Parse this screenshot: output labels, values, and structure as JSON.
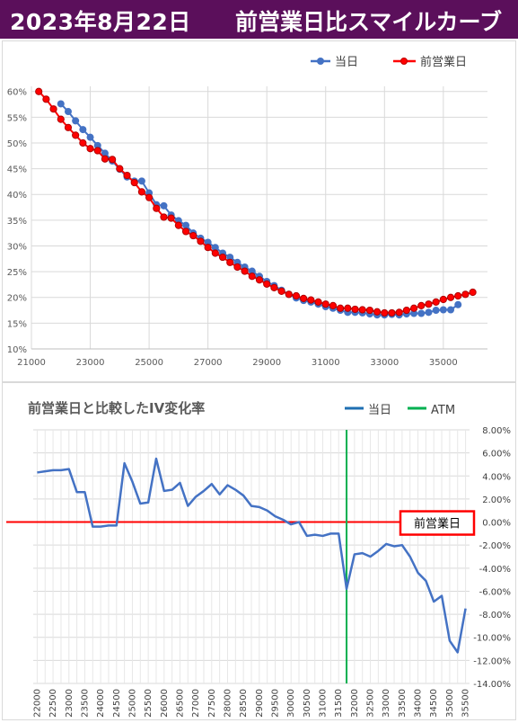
{
  "header": {
    "date": "2023年8月22日",
    "title": "前営業日比スマイルカーブ",
    "background": "#5b0f5b"
  },
  "chart_data": [
    {
      "type": "scatter",
      "title": "",
      "legend_position": "top-right",
      "xlim": [
        21000,
        36500
      ],
      "ylim": [
        10,
        61
      ],
      "x_ticks": [
        21000,
        23000,
        25000,
        27000,
        29000,
        31000,
        33000,
        35000
      ],
      "x_tick_labels": [
        "21000",
        "23000",
        "25000",
        "27000",
        "29000",
        "31000",
        "33000",
        "35000"
      ],
      "y_ticks": [
        10,
        15,
        20,
        25,
        30,
        35,
        40,
        45,
        50,
        55,
        60
      ],
      "y_tick_labels": [
        "10%",
        "15%",
        "20%",
        "25%",
        "30%",
        "35%",
        "40%",
        "45%",
        "50%",
        "55%",
        "60%"
      ],
      "series": [
        {
          "name": "当日",
          "color": "#4472c4",
          "x": [
            22000,
            22250,
            22500,
            22750,
            23000,
            23250,
            23500,
            23750,
            24000,
            24250,
            24500,
            24750,
            25000,
            25250,
            25500,
            25750,
            26000,
            26250,
            26500,
            26750,
            27000,
            27250,
            27500,
            27750,
            28000,
            28250,
            28500,
            28750,
            29000,
            29250,
            29500,
            29750,
            30000,
            30250,
            30500,
            30750,
            31000,
            31250,
            31500,
            31750,
            32000,
            32250,
            32500,
            32750,
            33000,
            33250,
            33500,
            33750,
            34000,
            34250,
            34500,
            34750,
            35000,
            35250,
            35500
          ],
          "y": [
            57.6,
            56.1,
            54.3,
            52.6,
            51.1,
            49.5,
            48.0,
            46.5,
            44.9,
            43.4,
            42.6,
            42.6,
            40.3,
            38.0,
            37.8,
            36.0,
            34.9,
            34.0,
            32.5,
            31.5,
            30.7,
            29.7,
            28.6,
            27.8,
            26.8,
            25.9,
            25.1,
            24.1,
            23.1,
            22.3,
            21.4,
            20.6,
            19.9,
            19.4,
            19.1,
            18.7,
            18.2,
            17.9,
            17.5,
            17.1,
            17.1,
            17.0,
            16.8,
            16.6,
            16.6,
            16.7,
            16.6,
            16.8,
            16.9,
            16.9,
            17.1,
            17.5,
            17.6,
            17.6,
            18.6
          ]
        },
        {
          "name": "前営業日",
          "color": "#ff0000",
          "x": [
            21250,
            21500,
            21750,
            22000,
            22250,
            22500,
            22750,
            23000,
            23250,
            23500,
            23750,
            24000,
            24250,
            24500,
            24750,
            25000,
            25250,
            25500,
            25750,
            26000,
            26250,
            26500,
            26750,
            27000,
            27250,
            27500,
            27750,
            28000,
            28250,
            28500,
            28750,
            29000,
            29250,
            29500,
            29750,
            30000,
            30250,
            30500,
            30750,
            31000,
            31250,
            31500,
            31750,
            32000,
            32250,
            32500,
            32750,
            33000,
            33250,
            33500,
            33750,
            34000,
            34250,
            34500,
            34750,
            35000,
            35250,
            35500,
            35750,
            36000
          ],
          "y": [
            60.0,
            58.5,
            56.6,
            54.6,
            53.0,
            51.5,
            50.0,
            48.9,
            48.5,
            46.9,
            46.8,
            45.0,
            43.7,
            42.3,
            40.5,
            39.4,
            37.3,
            35.6,
            35.4,
            34.0,
            32.8,
            32.0,
            30.9,
            29.7,
            28.6,
            27.8,
            26.8,
            25.9,
            25.1,
            24.1,
            23.4,
            22.6,
            21.9,
            21.2,
            20.6,
            20.3,
            19.8,
            19.5,
            19.1,
            18.7,
            18.4,
            17.9,
            17.9,
            17.7,
            17.6,
            17.5,
            17.2,
            17.0,
            17.0,
            17.1,
            17.5,
            17.9,
            18.4,
            18.7,
            19.1,
            19.6,
            20.0,
            20.3,
            20.6,
            21.0
          ]
        }
      ]
    },
    {
      "type": "line",
      "title": "前営業日と比較したIV変化率",
      "legend_position": "top-right",
      "ylim": [
        -14,
        8
      ],
      "y_axis_side": "right",
      "y_ticks": [
        8,
        6,
        4,
        2,
        0,
        -2,
        -4,
        -6,
        -8,
        -10,
        -12,
        -14
      ],
      "y_tick_labels": [
        "8.00%",
        "6.00%",
        "4.00%",
        "2.00%",
        "0.00%",
        "-2.00%",
        "-4.00%",
        "-6.00%",
        "-8.00%",
        "-10.00%",
        "-12.00%",
        "-14.00%"
      ],
      "categories": [
        "22000",
        "22250",
        "22500",
        "22750",
        "23000",
        "23250",
        "23500",
        "23750",
        "24000",
        "24250",
        "24500",
        "24750",
        "25000",
        "25250",
        "25500",
        "25750",
        "26000",
        "26250",
        "26500",
        "26750",
        "27000",
        "27250",
        "27500",
        "27750",
        "28000",
        "28250",
        "28500",
        "28750",
        "29000",
        "29250",
        "29500",
        "29750",
        "30000",
        "30250",
        "30500",
        "30750",
        "31000",
        "31250",
        "31500",
        "31750",
        "32000",
        "32250",
        "32500",
        "32750",
        "33000",
        "33250",
        "33500",
        "33750",
        "34000",
        "34250",
        "34500",
        "34750",
        "35000",
        "35250",
        "35500"
      ],
      "tick_labels": [
        "22000",
        "22500",
        "23000",
        "23500",
        "24000",
        "24500",
        "25000",
        "25500",
        "26000",
        "26500",
        "27000",
        "27500",
        "28000",
        "28500",
        "29000",
        "29500",
        "30000",
        "30500",
        "31000",
        "31500",
        "32000",
        "32500",
        "33000",
        "33500",
        "34000",
        "34500",
        "35000",
        "35500"
      ],
      "series": [
        {
          "name": "当日",
          "color": "#4472c4",
          "values": [
            4.3,
            4.4,
            4.5,
            4.5,
            4.6,
            2.6,
            2.6,
            -0.4,
            -0.4,
            -0.3,
            -0.3,
            5.1,
            3.5,
            1.6,
            1.7,
            5.5,
            2.7,
            2.8,
            3.4,
            1.4,
            2.2,
            2.7,
            3.3,
            2.4,
            3.2,
            2.8,
            2.3,
            1.4,
            1.3,
            1.0,
            0.5,
            0.2,
            -0.2,
            0.0,
            -1.2,
            -1.1,
            -1.2,
            -1.0,
            -1.0,
            -5.8,
            -2.8,
            -2.7,
            -3.0,
            -2.5,
            -1.9,
            -2.1,
            -2.0,
            -3.0,
            -4.4,
            -5.1,
            -6.9,
            -6.4,
            -10.3,
            -11.3,
            -7.5
          ]
        }
      ],
      "atm": {
        "name": "ATM",
        "value": "31750",
        "color": "#00b050"
      },
      "reference": {
        "label": "前営業日",
        "value": 0,
        "color": "#ff0000"
      }
    }
  ]
}
